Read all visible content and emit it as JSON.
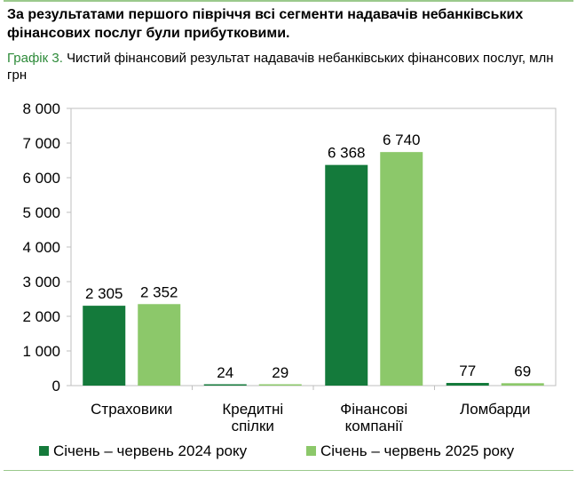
{
  "header": {
    "title": "За результатами першого півріччя всі сегменти надавачів небанківських фінансових послуг були прибутковими."
  },
  "caption": {
    "label": "Графік 3.",
    "text": "Чистий фінансовий результат надавачів небанківських фінансових послуг, млн грн"
  },
  "colors": {
    "series_2024": "#147a3b",
    "series_2025": "#8cc86a",
    "accent_rule": "#9bc98c",
    "caption_label": "#2e8b3a"
  },
  "chart_data": {
    "type": "bar",
    "title": "",
    "xlabel": "",
    "ylabel": "",
    "ylim": [
      0,
      8000
    ],
    "yticks": [
      0,
      1000,
      2000,
      3000,
      4000,
      5000,
      6000,
      7000,
      8000
    ],
    "ytick_labels": [
      "0",
      "1 000",
      "2 000",
      "3 000",
      "4 000",
      "5 000",
      "6 000",
      "7 000",
      "8 000"
    ],
    "categories": [
      [
        "Страховики"
      ],
      [
        "Кредитні",
        "спілки"
      ],
      [
        "Фінансові",
        "компанії"
      ],
      [
        "Ломбарди"
      ]
    ],
    "series": [
      {
        "name": "Січень – червень 2024 року",
        "values": [
          2305,
          24,
          6368,
          77
        ],
        "labels": [
          "2 305",
          "24",
          "6 368",
          "77"
        ]
      },
      {
        "name": "Січень – червень 2025 року",
        "values": [
          2352,
          29,
          6740,
          69
        ],
        "labels": [
          "2 352",
          "29",
          "6 740",
          "69"
        ]
      }
    ],
    "grid": false,
    "legend": "bottom"
  }
}
